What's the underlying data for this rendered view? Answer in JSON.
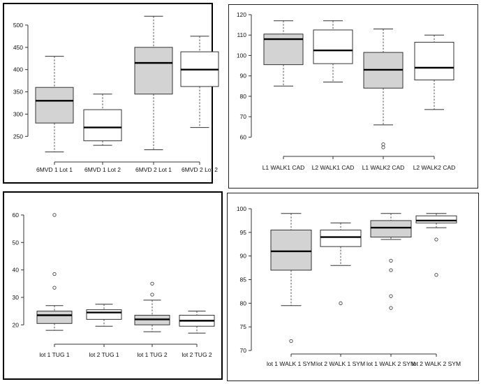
{
  "chart_data": [
    {
      "type": "boxplot",
      "categories": [
        "6MVD 1 Lot 1",
        "6MVD 1 Lot 2",
        "6MVD 2 Lot 1",
        "6MVD 2 Lot 2"
      ],
      "yticks": [
        "250",
        "300",
        "350",
        "400",
        "450",
        "500"
      ],
      "ylim": [
        205,
        525
      ],
      "boxes": [
        {
          "min": 215,
          "q1": 280,
          "median": 330,
          "q3": 360,
          "max": 430,
          "fill": "#d3d3d3",
          "outliers": []
        },
        {
          "min": 230,
          "q1": 240,
          "median": 270,
          "q3": 310,
          "max": 345,
          "fill": "#ffffff",
          "outliers": []
        },
        {
          "min": 220,
          "q1": 345,
          "median": 415,
          "q3": 450,
          "max": 520,
          "fill": "#d3d3d3",
          "outliers": []
        },
        {
          "min": 270,
          "q1": 362,
          "median": 400,
          "q3": 440,
          "max": 475,
          "fill": "#ffffff",
          "outliers": []
        }
      ]
    },
    {
      "type": "boxplot",
      "categories": [
        "L1 WALK1 CAD",
        "L2 WALK1 CAD",
        "L1 WALK2 CAD",
        "L2 WALK2 CAD"
      ],
      "yticks": [
        "60",
        "70",
        "80",
        "90",
        "100",
        "110",
        "120"
      ],
      "ylim": [
        55,
        120
      ],
      "boxes": [
        {
          "min": 85,
          "q1": 95.5,
          "median": 108,
          "q3": 110.5,
          "max": 117,
          "fill": "#d3d3d3",
          "outliers": []
        },
        {
          "min": 87,
          "q1": 96,
          "median": 102.5,
          "q3": 112.5,
          "max": 117,
          "fill": "#ffffff",
          "outliers": []
        },
        {
          "min": 66,
          "q1": 84,
          "median": 93,
          "q3": 101.5,
          "max": 113,
          "fill": "#d3d3d3",
          "outliers": [
            56.5,
            55
          ]
        },
        {
          "min": 73.5,
          "q1": 88,
          "median": 94,
          "q3": 106.5,
          "max": 110,
          "fill": "#ffffff",
          "outliers": []
        }
      ]
    },
    {
      "type": "boxplot",
      "categories": [
        "lot 1 TUG 1",
        "lot 2 TUG 1",
        "lot 1 TUG 2",
        "lot 2 TUG 2"
      ],
      "yticks": [
        "20",
        "30",
        "40",
        "50",
        "60"
      ],
      "ylim": [
        16,
        61
      ],
      "boxes": [
        {
          "min": 18,
          "q1": 20.5,
          "median": 23.5,
          "q3": 25,
          "max": 27,
          "fill": "#d3d3d3",
          "outliers": [
            33.5,
            38.5,
            60
          ]
        },
        {
          "min": 19.5,
          "q1": 22,
          "median": 24.5,
          "q3": 25.5,
          "max": 27.5,
          "fill": "#ffffff",
          "outliers": []
        },
        {
          "min": 17.5,
          "q1": 20,
          "median": 22,
          "q3": 23.5,
          "max": 29,
          "fill": "#d3d3d3",
          "outliers": [
            31,
            35
          ]
        },
        {
          "min": 17,
          "q1": 19.5,
          "median": 21.5,
          "q3": 23.5,
          "max": 25,
          "fill": "#ffffff",
          "outliers": []
        }
      ]
    },
    {
      "type": "boxplot",
      "categories": [
        "lot 1 WALK 1  SYM",
        "lot 2 WALK 1  SYM",
        "lot 1 WALK 2  SYM",
        "lot 2 WALK 2  SYM"
      ],
      "yticks": [
        "70",
        "75",
        "80",
        "85",
        "90",
        "95",
        "100"
      ],
      "ylim": [
        70,
        100
      ],
      "boxes": [
        {
          "min": 79.5,
          "q1": 87,
          "median": 91,
          "q3": 95.5,
          "max": 99,
          "fill": "#d3d3d3",
          "outliers": [
            72
          ]
        },
        {
          "min": 88,
          "q1": 92,
          "median": 94,
          "q3": 95.5,
          "max": 97,
          "fill": "#ffffff",
          "outliers": [
            80
          ]
        },
        {
          "min": 93.5,
          "q1": 94,
          "median": 96,
          "q3": 97.5,
          "max": 99,
          "fill": "#d3d3d3",
          "outliers": [
            89,
            87,
            81.5,
            79
          ]
        },
        {
          "min": 96,
          "q1": 97,
          "median": 97.5,
          "q3": 98.5,
          "max": 99,
          "fill": "#ffffff",
          "outliers": [
            93.5,
            86
          ]
        }
      ]
    }
  ]
}
